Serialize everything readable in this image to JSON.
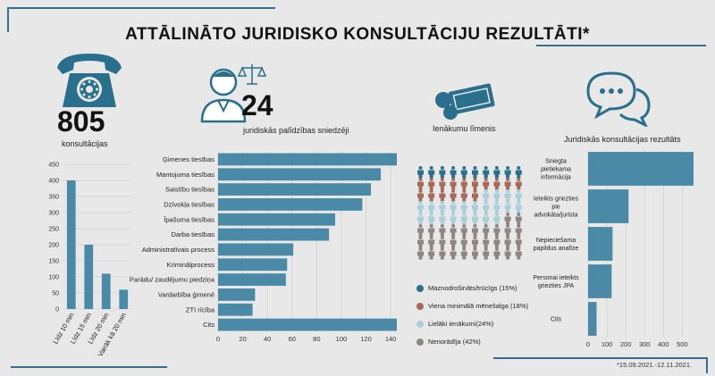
{
  "title": "ATTĀLINĀTO JURIDISKO KONSULTĀCIJU REZULTĀTI*",
  "footnote": "*15.09.2021.-12.11.2021.",
  "stats": {
    "consultations_count": "805",
    "consultations_label": "konsultācijas",
    "providers_count": "24",
    "providers_label": "juridiskās palīdzības sniedzēji",
    "income_label": "Ienākumu līmenis",
    "results_label": "Juridiskās konsultācijas rezultāts"
  },
  "colors": {
    "bar": "#4b8aa6",
    "dark_blue": "#2a6f8c",
    "brown": "#a56a5a",
    "light_blue": "#a9cfdc",
    "grey": "#8f8683"
  },
  "chart_data": [
    {
      "type": "bar",
      "orientation": "vertical",
      "categories": [
        "Līdz 10 min",
        "Līdz 15 min",
        "Līdz 20 min",
        "Vairāk kā 20 min"
      ],
      "values": [
        400,
        200,
        110,
        60
      ],
      "ylim": [
        0,
        450
      ],
      "yticks": [
        0,
        50,
        100,
        150,
        200,
        250,
        300,
        350,
        400,
        450
      ],
      "grid": true
    },
    {
      "type": "bar",
      "orientation": "horizontal",
      "categories": [
        "Ģimenes tiesības",
        "Mantojuma tiesības",
        "Saistību tiesības",
        "Dzīvokļa tiesības",
        "Īpašuma tiesības",
        "Darba tiesības",
        "Administratīvais process",
        "Kriminālprocess",
        "Parādu/ zaudējumu piedziņa",
        "Vardarbība ģimenē",
        "ZTI rīcība",
        "Cits"
      ],
      "values": [
        145,
        132,
        124,
        117,
        95,
        90,
        61,
        56,
        55,
        30,
        28,
        145
      ],
      "xlim": [
        0,
        145
      ],
      "xticks": [
        0,
        20,
        40,
        60,
        80,
        100,
        120,
        140
      ],
      "grid": true
    },
    {
      "type": "pictogram",
      "legend": [
        {
          "name": "Maznodrošināts/trūcīgs (15%)",
          "color": "#2a6f8c",
          "value": 15
        },
        {
          "name": "Viena minimālā mēnešalga (18%)",
          "color": "#a56a5a",
          "value": 18
        },
        {
          "name": "Lielāki ienākumi(24%)",
          "color": "#a9cfdc",
          "value": 24
        },
        {
          "name": "Nenorādīja (42%)",
          "color": "#8f8683",
          "value": 42
        }
      ],
      "legend_placement": "bottom"
    },
    {
      "type": "bar",
      "orientation": "horizontal",
      "categories": [
        "Sniegta pietiekama informācija",
        "Ieteikts griezties pie advokāta/jurista",
        "Nepieciešama papildus analīze",
        "Personai ieteikts griezties JPA",
        "Cits"
      ],
      "values": [
        560,
        215,
        130,
        125,
        45
      ],
      "xlim": [
        0,
        560
      ],
      "xticks": [
        0,
        100,
        200,
        300,
        400,
        500
      ],
      "grid": true
    }
  ]
}
